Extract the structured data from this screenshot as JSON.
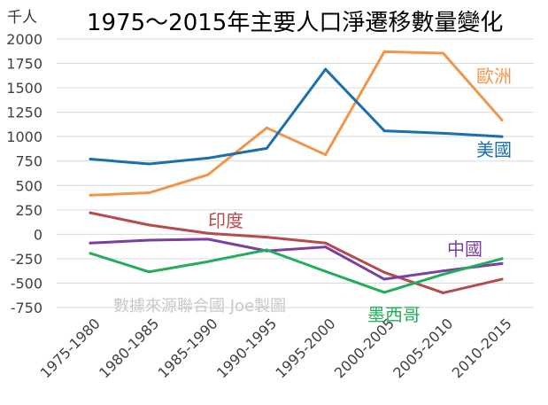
{
  "chart_data": {
    "type": "line",
    "title": "1975～2015年主要人口淨遷移數量變化",
    "ylabel": "千人",
    "watermark": "數據來源聯合國 Joe製圖",
    "categories": [
      "1975-1980",
      "1980-1985",
      "1985-1990",
      "1990-1995",
      "1995-2000",
      "2000-2005",
      "2005-2010",
      "2010-2015"
    ],
    "y_ticks": [
      "2000",
      "1750",
      "1500",
      "1250",
      "1000",
      "750",
      "500",
      "250",
      "0",
      "-250",
      "-500",
      "-750"
    ],
    "ylim": [
      -750,
      2000
    ],
    "grid": true,
    "series": [
      {
        "name": "歐洲",
        "color": "#f0964a",
        "values": [
          400,
          425,
          610,
          1090,
          815,
          1870,
          1855,
          1170
        ]
      },
      {
        "name": "美國",
        "color": "#1a6fad",
        "values": [
          770,
          720,
          780,
          880,
          1690,
          1060,
          1035,
          1000
        ]
      },
      {
        "name": "印度",
        "color": "#b54b4b",
        "values": [
          220,
          95,
          10,
          -30,
          -90,
          -390,
          -600,
          -460
        ]
      },
      {
        "name": "中國",
        "color": "#7b3fa0",
        "values": [
          -90,
          -60,
          -50,
          -170,
          -130,
          -460,
          -375,
          -300
        ]
      },
      {
        "name": "墨西哥",
        "color": "#22ad5a",
        "values": [
          -195,
          -385,
          -280,
          -160,
          -380,
          -595,
          -410,
          -250
        ]
      }
    ]
  }
}
